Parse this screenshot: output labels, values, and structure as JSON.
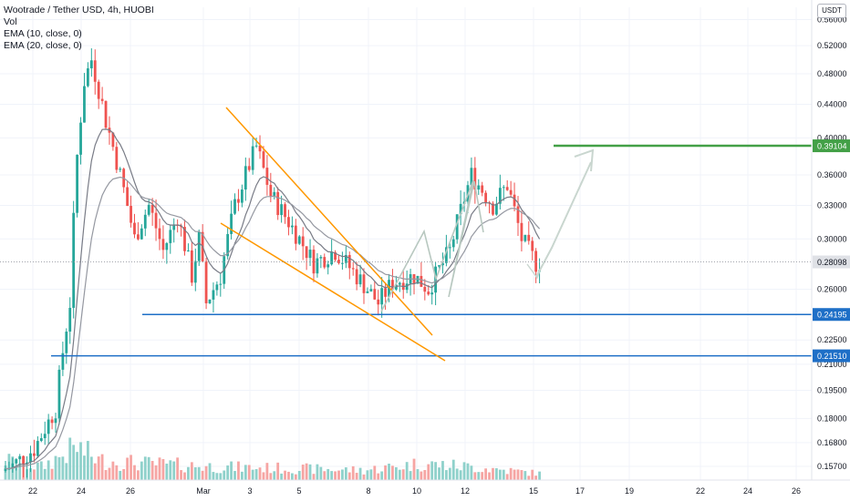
{
  "legend": {
    "title": "Wootrade / Tether USD, 4h, HUOBI",
    "vol": "Vol",
    "ema10": "EMA (10, close, 0)",
    "ema20": "EMA (20, close, 0)"
  },
  "currency_badge": "USDT",
  "colors": {
    "up": "#26a69a",
    "down": "#ef5350",
    "vol_up": "#8fd1cb",
    "vol_down": "#f6a5a3",
    "ema10": "#787b86",
    "ema20": "#9598a1",
    "wedge": "#ff9800",
    "support": "#1e6fc7",
    "target": "#43a047",
    "projection": "#c9d6cf",
    "pattern": "#b8c8c0"
  },
  "chart_data": {
    "type": "candlestick",
    "y_scale": "log",
    "ylim": [
      0.153,
      0.58
    ],
    "y_ticks": [
      "0.56000",
      "0.52000",
      "0.48000",
      "0.44000",
      "0.40000",
      "0.36000",
      "0.33000",
      "0.30000",
      "0.26000",
      "0.22500",
      "0.21000",
      "0.19500",
      "0.18000",
      "0.16800",
      "0.15700"
    ],
    "x_ticks": [
      "22",
      "24",
      "26",
      "Mar",
      "3",
      "5",
      "8",
      "10",
      "12",
      "15",
      "17",
      "19",
      "22",
      "24",
      "26"
    ],
    "last_price": "0.28098",
    "levels": [
      {
        "label": "0.39104",
        "kind": "target"
      },
      {
        "label": "0.24195",
        "kind": "support"
      },
      {
        "label": "0.21510",
        "kind": "support"
      }
    ],
    "anchors": [
      {
        "bar": 0,
        "price": 0.155
      },
      {
        "bar": 8,
        "price": 0.165
      },
      {
        "bar": 14,
        "price": 0.185
      },
      {
        "bar": 18,
        "price": 0.25
      },
      {
        "bar": 20,
        "price": 0.38
      },
      {
        "bar": 22,
        "price": 0.47
      },
      {
        "bar": 24,
        "price": 0.5
      },
      {
        "bar": 28,
        "price": 0.42
      },
      {
        "bar": 32,
        "price": 0.36
      },
      {
        "bar": 36,
        "price": 0.3
      },
      {
        "bar": 40,
        "price": 0.33
      },
      {
        "bar": 44,
        "price": 0.29
      },
      {
        "bar": 48,
        "price": 0.32
      },
      {
        "bar": 52,
        "price": 0.27
      },
      {
        "bar": 54,
        "price": 0.3
      },
      {
        "bar": 56,
        "price": 0.25
      },
      {
        "bar": 60,
        "price": 0.27
      },
      {
        "bar": 64,
        "price": 0.33
      },
      {
        "bar": 70,
        "price": 0.39
      },
      {
        "bar": 74,
        "price": 0.34
      },
      {
        "bar": 80,
        "price": 0.31
      },
      {
        "bar": 86,
        "price": 0.28
      },
      {
        "bar": 92,
        "price": 0.29
      },
      {
        "bar": 98,
        "price": 0.27
      },
      {
        "bar": 104,
        "price": 0.25
      },
      {
        "bar": 108,
        "price": 0.265
      },
      {
        "bar": 114,
        "price": 0.27
      },
      {
        "bar": 118,
        "price": 0.26
      },
      {
        "bar": 124,
        "price": 0.29
      },
      {
        "bar": 130,
        "price": 0.36
      },
      {
        "bar": 136,
        "price": 0.33
      },
      {
        "bar": 140,
        "price": 0.35
      },
      {
        "bar": 144,
        "price": 0.3
      },
      {
        "bar": 148,
        "price": 0.28
      },
      {
        "bar": 149,
        "price": 0.281
      }
    ],
    "volume_anchors": [
      {
        "bar": 0,
        "v": 0.6
      },
      {
        "bar": 10,
        "v": 0.4
      },
      {
        "bar": 20,
        "v": 1.0
      },
      {
        "bar": 26,
        "v": 0.6
      },
      {
        "bar": 40,
        "v": 0.5
      },
      {
        "bar": 60,
        "v": 0.4
      },
      {
        "bar": 80,
        "v": 0.35
      },
      {
        "bar": 100,
        "v": 0.3
      },
      {
        "bar": 116,
        "v": 0.5
      },
      {
        "bar": 130,
        "v": 0.4
      },
      {
        "bar": 149,
        "v": 0.2
      }
    ]
  }
}
